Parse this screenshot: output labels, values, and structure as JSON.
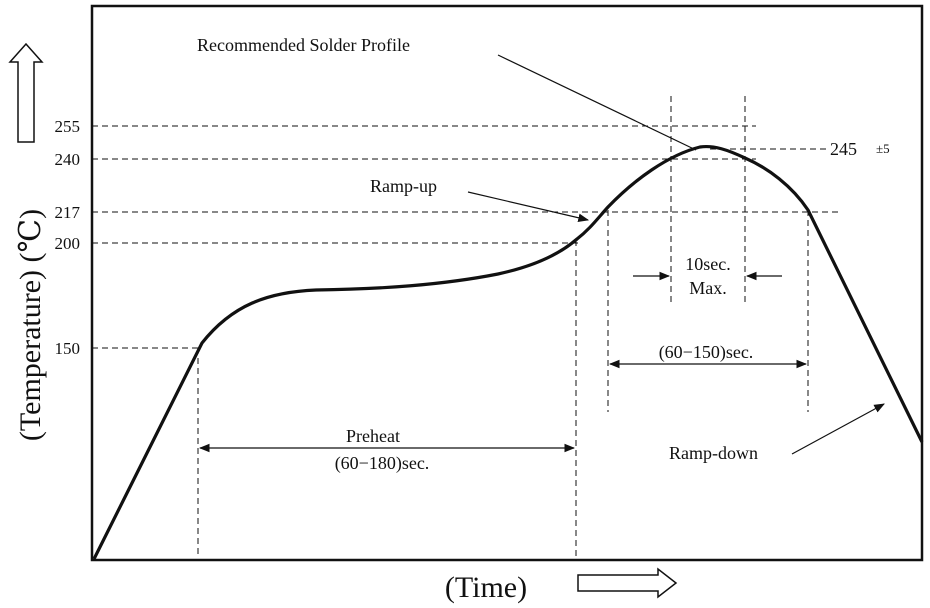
{
  "diagram": {
    "title": "Recommended Solder Profile",
    "y_axis_title": "(Temperature) (℃)",
    "x_axis_title": "(Time)",
    "y_ticks": [
      "255",
      "240",
      "217",
      "200",
      "150"
    ],
    "peak_label": "245",
    "peak_tolerance": "±5",
    "annotations": {
      "ramp_up": "Ramp-up",
      "ramp_down": "Ramp-down",
      "preheat": "Preheat",
      "preheat_duration": "(60−180)sec.",
      "reflow_duration": "(60−150)sec.",
      "peak_time": "10sec.",
      "peak_time_max": "Max."
    }
  }
}
